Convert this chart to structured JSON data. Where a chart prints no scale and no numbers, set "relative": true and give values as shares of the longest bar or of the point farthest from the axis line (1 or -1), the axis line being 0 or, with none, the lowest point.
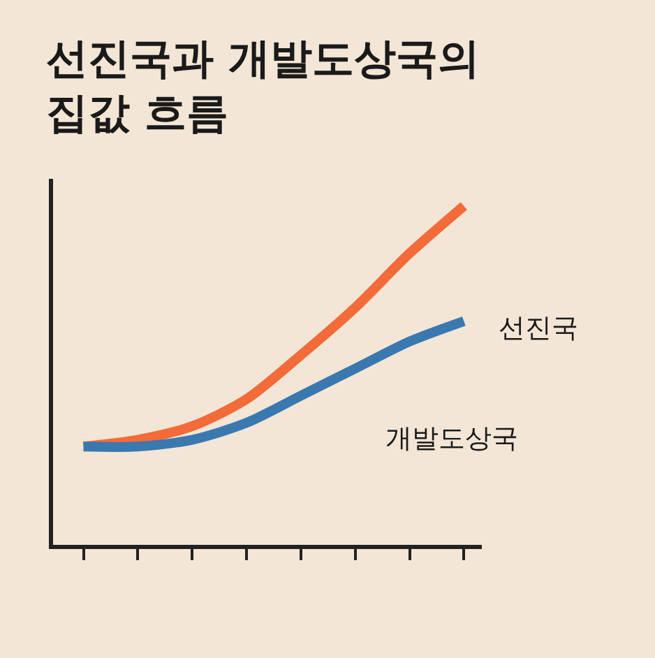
{
  "chart_data": {
    "type": "line",
    "title": "선진국과 개발도상국의\n집값 흐름",
    "relative": true,
    "categories": [
      null,
      null,
      null,
      null,
      null,
      null,
      null,
      null
    ],
    "series": [
      {
        "color": "#f26b38",
        "values": [
          0.29,
          0.31,
          0.35,
          0.43,
          0.56,
          0.7,
          0.86,
          1.0
        ]
      },
      {
        "color": "#3a78b0",
        "values": [
          0.29,
          0.29,
          0.31,
          0.36,
          0.44,
          0.52,
          0.6,
          0.66
        ]
      }
    ],
    "annotations": [
      "선진국",
      "개발도상국"
    ],
    "grid": false,
    "marker": "none",
    "line_style": "solid"
  }
}
